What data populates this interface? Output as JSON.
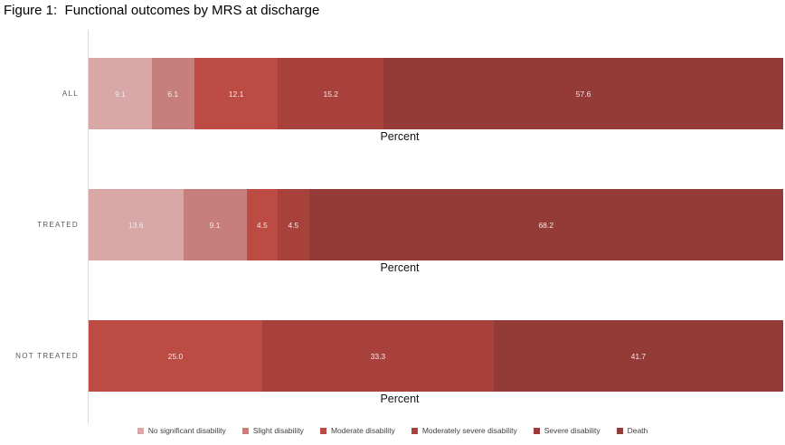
{
  "title": "Figure 1:  Functional outcomes by MRS at discharge",
  "chart_data": {
    "type": "bar",
    "subtype": "stacked-horizontal",
    "title": "Figure 1:  Functional outcomes by MRS at discharge",
    "categories": [
      "ALL",
      "TREATED",
      "NOT TREATED"
    ],
    "series": [
      {
        "name": "No significant disability",
        "color": "#d9a7a6",
        "values": [
          9.1,
          13.6,
          0
        ]
      },
      {
        "name": "Slight disability",
        "color": "#c67f7c",
        "values": [
          6.1,
          9.1,
          0
        ]
      },
      {
        "name": "Moderate disability",
        "color": "#bc4b44",
        "values": [
          12.1,
          4.5,
          25.0
        ]
      },
      {
        "name": "Moderately severe disability",
        "color": "#a8403c",
        "values": [
          15.2,
          4.5,
          33.3
        ]
      },
      {
        "name": "Severe disability",
        "color": "#9e3b38",
        "values": [
          0,
          0,
          0
        ]
      },
      {
        "name": "Death",
        "color": "#943a37",
        "values": [
          57.6,
          68.2,
          41.7
        ]
      }
    ],
    "xlabel": "Percent",
    "xlim": [
      0,
      100
    ],
    "grid": false,
    "legend_position": "bottom",
    "value_labels": "one-decimal, white, centered in segment"
  },
  "style": {
    "axis_line_color": "#d9d9d9",
    "category_label_color": "#595959",
    "legend_text_color": "#404040",
    "value_label_color": "#f3ebea",
    "background": "#ffffff"
  }
}
